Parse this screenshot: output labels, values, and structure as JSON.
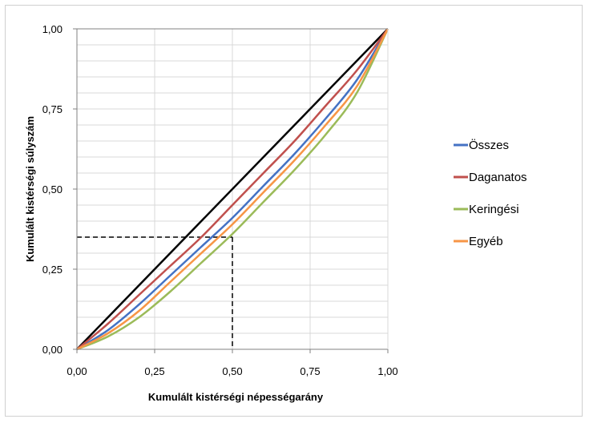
{
  "chart_data": {
    "type": "line",
    "xlabel": "Kumulált kistérségi népességarány",
    "ylabel": "Kumulált kistérségi súlyszám",
    "xlim": [
      0,
      1
    ],
    "ylim": [
      0,
      1
    ],
    "x_ticks": [
      "0,00",
      "0,25",
      "0,50",
      "0,75",
      "1,00"
    ],
    "y_ticks": [
      "0,00",
      "0,25",
      "0,50",
      "0,75",
      "1,00"
    ],
    "grid": "horizontal",
    "legend_position": "right",
    "series": [
      {
        "legend": false,
        "color": "#000000",
        "x": [
          0,
          1
        ],
        "y": [
          0,
          1
        ]
      },
      {
        "name": "Összes",
        "color": "#4472c4",
        "x": [
          0,
          0.1,
          0.2,
          0.3,
          0.4,
          0.5,
          0.6,
          0.7,
          0.8,
          0.9,
          1.0
        ],
        "y": [
          0,
          0.06,
          0.14,
          0.23,
          0.32,
          0.41,
          0.51,
          0.61,
          0.72,
          0.84,
          1.0
        ]
      },
      {
        "name": "Daganatos",
        "color": "#c0504d",
        "x": [
          0,
          0.1,
          0.2,
          0.3,
          0.4,
          0.5,
          0.6,
          0.7,
          0.8,
          0.9,
          1.0
        ],
        "y": [
          0,
          0.08,
          0.17,
          0.26,
          0.35,
          0.45,
          0.55,
          0.65,
          0.76,
          0.87,
          1.0
        ]
      },
      {
        "name": "Keringési",
        "color": "#9bbb59",
        "x": [
          0,
          0.1,
          0.2,
          0.3,
          0.4,
          0.5,
          0.6,
          0.7,
          0.8,
          0.9,
          1.0
        ],
        "y": [
          0,
          0.04,
          0.1,
          0.18,
          0.27,
          0.36,
          0.46,
          0.56,
          0.67,
          0.8,
          1.0
        ]
      },
      {
        "name": "Egyéb",
        "color": "#f79646",
        "x": [
          0,
          0.1,
          0.2,
          0.3,
          0.4,
          0.5,
          0.6,
          0.7,
          0.8,
          0.9,
          1.0
        ],
        "y": [
          0,
          0.05,
          0.12,
          0.21,
          0.3,
          0.39,
          0.49,
          0.59,
          0.7,
          0.82,
          1.0
        ]
      }
    ],
    "reference_lines": {
      "x": 0.5,
      "y": 0.35,
      "style": "dashed"
    }
  }
}
